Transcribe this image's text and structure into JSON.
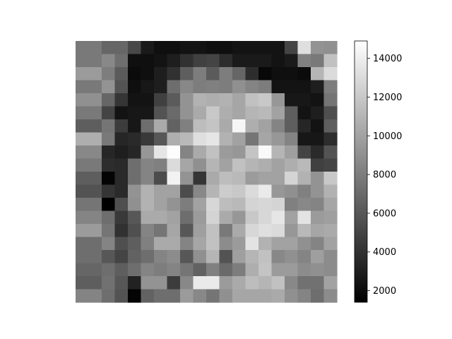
{
  "chart_data": {
    "type": "heatmap",
    "colormap": "gray",
    "rows": 20,
    "cols": 20,
    "vmin": 1400,
    "vmax": 14900,
    "colorbar_ticks": [
      "2000",
      "4000",
      "6000",
      "8000",
      "10000",
      "12000",
      "14000"
    ],
    "values": [
      [
        7800,
        7800,
        6800,
        6800,
        5200,
        2800,
        2200,
        2200,
        2400,
        2400,
        2200,
        2200,
        2400,
        2400,
        2400,
        2400,
        5000,
        13200,
        9200,
        9000
      ],
      [
        7800,
        7800,
        8600,
        7200,
        2200,
        2200,
        2400,
        3000,
        4000,
        4800,
        5000,
        3800,
        2800,
        2800,
        2800,
        2400,
        2800,
        8200,
        7800,
        11600
      ],
      [
        9600,
        9600,
        8000,
        6200,
        2000,
        2200,
        3000,
        4000,
        6400,
        8000,
        6200,
        8000,
        6800,
        3800,
        1800,
        2200,
        2200,
        2000,
        11000,
        13000
      ],
      [
        7800,
        7800,
        9200,
        5800,
        2200,
        2600,
        3000,
        7200,
        8600,
        8000,
        8200,
        8000,
        9000,
        8400,
        8000,
        2400,
        2400,
        2400,
        3000,
        8000
      ],
      [
        9000,
        9000,
        6800,
        4200,
        2400,
        2400,
        4800,
        6200,
        9200,
        10800,
        10600,
        10800,
        10200,
        11600,
        12000,
        9400,
        2600,
        2600,
        2400,
        7600
      ],
      [
        7800,
        7800,
        5000,
        2400,
        2600,
        2600,
        5800,
        7000,
        9200,
        10400,
        12000,
        10600,
        10200,
        11000,
        11200,
        10000,
        6400,
        2400,
        3000,
        5600
      ],
      [
        6400,
        6400,
        7600,
        4600,
        2600,
        7200,
        10400,
        6600,
        8200,
        11400,
        11800,
        10400,
        14400,
        10600,
        10000,
        8400,
        6400,
        3400,
        2400,
        6400
      ],
      [
        10600,
        10600,
        7800,
        3400,
        3600,
        4400,
        6000,
        10600,
        11200,
        13200,
        13600,
        10800,
        10000,
        7600,
        10200,
        9400,
        8400,
        2600,
        2600,
        3800
      ],
      [
        8600,
        8600,
        3400,
        3000,
        3400,
        9400,
        13600,
        14800,
        8400,
        10400,
        11600,
        9600,
        9400,
        11800,
        14600,
        11000,
        9800,
        5000,
        3600,
        5800
      ],
      [
        7800,
        7800,
        3800,
        3600,
        7200,
        8400,
        8200,
        13000,
        10200,
        9000,
        11000,
        10000,
        11600,
        11000,
        10600,
        10000,
        10600,
        11200,
        4800,
        5000
      ],
      [
        6400,
        6400,
        1600,
        3600,
        7200,
        8400,
        5400,
        14200,
        9200,
        4200,
        10400,
        11400,
        11200,
        9600,
        10000,
        10000,
        12600,
        10800,
        9200,
        12000
      ],
      [
        5800,
        5800,
        4200,
        3600,
        9200,
        10800,
        10000,
        10000,
        5400,
        8600,
        11000,
        12200,
        12000,
        13000,
        13800,
        9400,
        9000,
        8200,
        9200,
        10800
      ],
      [
        7600,
        7600,
        1400,
        5600,
        9000,
        10800,
        10000,
        9200,
        8000,
        10000,
        12800,
        11400,
        11200,
        12600,
        12800,
        12600,
        8200,
        8600,
        8400,
        10200
      ],
      [
        8400,
        8400,
        7200,
        4400,
        6000,
        10400,
        10400,
        10000,
        7200,
        9600,
        12600,
        10400,
        9400,
        12000,
        12800,
        13600,
        10000,
        13400,
        9600,
        9800
      ],
      [
        9600,
        9600,
        7600,
        4000,
        5600,
        8400,
        7600,
        10200,
        6000,
        9800,
        11600,
        7800,
        10400,
        12800,
        13200,
        13000,
        9400,
        11200,
        10200,
        10400
      ],
      [
        7200,
        7200,
        8400,
        5600,
        6400,
        8200,
        10400,
        10400,
        8400,
        10200,
        11600,
        8800,
        9600,
        13400,
        10800,
        10000,
        10000,
        9000,
        8400,
        10000
      ],
      [
        7200,
        7200,
        6000,
        5000,
        6600,
        7200,
        8400,
        8800,
        6000,
        9000,
        11000,
        5800,
        9800,
        11000,
        11600,
        8600,
        9000,
        8400,
        9800,
        8800
      ],
      [
        6800,
        6800,
        7200,
        6400,
        7200,
        8400,
        8000,
        8400,
        7600,
        6600,
        8200,
        7000,
        8000,
        10600,
        11800,
        9600,
        9600,
        8800,
        9000,
        8800
      ],
      [
        6400,
        6400,
        7400,
        6000,
        3200,
        9200,
        9200,
        4600,
        8600,
        13800,
        13800,
        9600,
        10400,
        11400,
        11000,
        11600,
        8600,
        7400,
        7400,
        10000
      ],
      [
        8400,
        8400,
        7200,
        5800,
        1600,
        6600,
        7200,
        7200,
        9600,
        8600,
        7600,
        9000,
        10200,
        10200,
        10200,
        10400,
        9000,
        8400,
        7200,
        8800
      ]
    ]
  }
}
